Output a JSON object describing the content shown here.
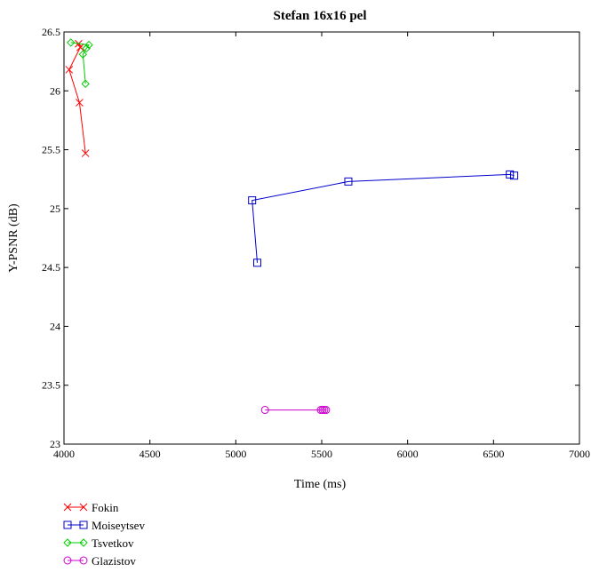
{
  "chart_data": {
    "type": "line",
    "title": "Stefan 16x16 pel",
    "xlabel": "Time (ms)",
    "ylabel": "Y-PSNR (dB)",
    "xlim": [
      4000,
      7000
    ],
    "ylim": [
      23,
      26.5
    ],
    "xticks": [
      4000,
      4500,
      5000,
      5500,
      6000,
      6500,
      7000
    ],
    "yticks": [
      23,
      23.5,
      24,
      24.5,
      25,
      25.5,
      26,
      26.5
    ],
    "xtick_labels": [
      "4000",
      "4500",
      "5000",
      "5500",
      "6000",
      "6500",
      "7000"
    ],
    "ytick_labels": [
      "23",
      "23.5",
      "24",
      "24.5",
      "25",
      "25.5",
      "26",
      "26.5"
    ],
    "grid": false,
    "legend_position": "bottom-left, below plot",
    "series": [
      {
        "name": "Fokin",
        "color": "#ff0000",
        "marker": "x",
        "points": [
          [
            4125,
            25.47
          ],
          [
            4090,
            25.9
          ],
          [
            4030,
            26.18
          ],
          [
            4095,
            26.37
          ],
          [
            4085,
            26.4
          ]
        ]
      },
      {
        "name": "Moiseytsev",
        "color": "#0000cc",
        "marker": "square",
        "points": [
          [
            5125,
            24.54
          ],
          [
            5095,
            25.07
          ],
          [
            5655,
            25.23
          ],
          [
            6595,
            25.29
          ],
          [
            6620,
            25.28
          ]
        ]
      },
      {
        "name": "Tsvetkov",
        "color": "#00cc00",
        "marker": "diamond",
        "points": [
          [
            4125,
            26.06
          ],
          [
            4110,
            26.31
          ],
          [
            4130,
            26.36
          ],
          [
            4145,
            26.39
          ],
          [
            4040,
            26.41
          ]
        ]
      },
      {
        "name": "Glazistov",
        "color": "#cc00cc",
        "marker": "circle",
        "points": [
          [
            5170,
            23.29
          ],
          [
            5495,
            23.29
          ],
          [
            5505,
            23.29
          ],
          [
            5515,
            23.29
          ],
          [
            5525,
            23.29
          ]
        ]
      }
    ]
  }
}
